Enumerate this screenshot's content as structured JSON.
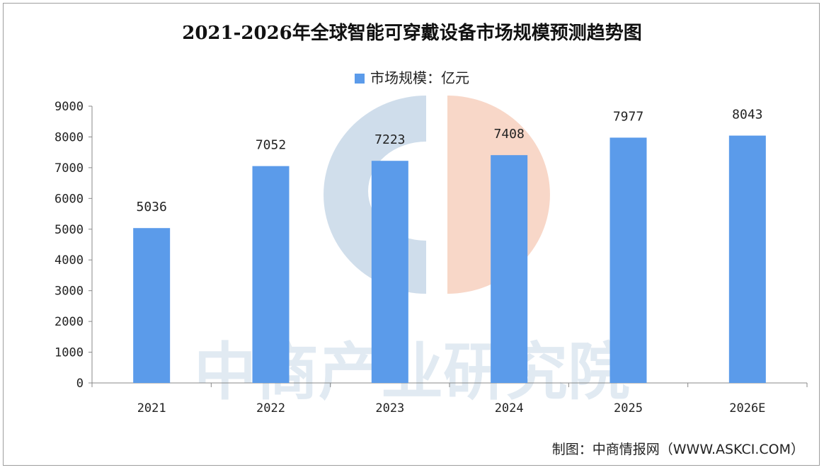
{
  "chart_data": {
    "type": "bar",
    "title": "2021-2026年全球智能可穿戴设备市场规模预测趋势图",
    "legend": {
      "position": "top",
      "entries": [
        "市场规模：亿元"
      ]
    },
    "categories": [
      "2021",
      "2022",
      "2023",
      "2024",
      "2025",
      "2026E"
    ],
    "series": [
      {
        "name": "市场规模：亿元",
        "values": [
          5036,
          7052,
          7223,
          7408,
          7977,
          8043
        ]
      }
    ],
    "xlabel": "",
    "ylabel": "",
    "ylim": [
      0,
      9000
    ],
    "yticks": [
      "0",
      "1000",
      "2000",
      "3000",
      "4000",
      "5000",
      "6000",
      "7000",
      "8000",
      "9000"
    ],
    "grid": false,
    "bar_color": "#5b9bea"
  },
  "source": "制图：中商情报网（WWW.ASKCI.COM）",
  "watermark": {
    "text": "中商产业研究院",
    "logo": "askci-logo"
  }
}
